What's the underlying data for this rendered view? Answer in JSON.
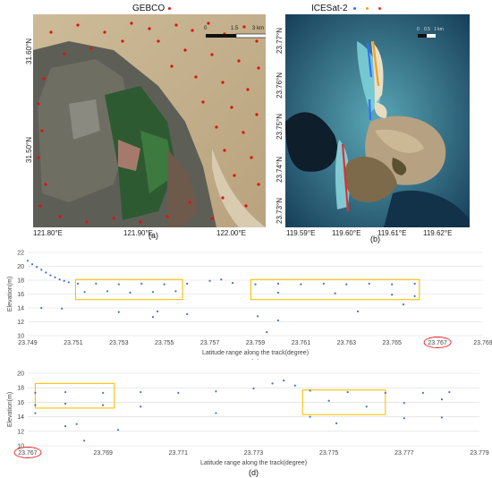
{
  "map_a": {
    "legend": "GEBCO",
    "legend_color": "#e01010",
    "scale_labels": [
      "0",
      "1.5",
      "3 km"
    ],
    "x_ticks": [
      "121.80°E",
      "121.90°E",
      "122.00°E"
    ],
    "y_ticks": [
      "31.60°N",
      "31.50°N"
    ],
    "panel_label": "(a)"
  },
  "map_b": {
    "legend": "ICESat-2",
    "legend_colors": [
      "#2f6fff",
      "#f0a020",
      "#e03030"
    ],
    "scale_labels": [
      "0",
      "0.5",
      "1 km"
    ],
    "x_ticks": [
      "119.59°E",
      "119.60°E",
      "119.61°E",
      "119.62°E"
    ],
    "y_ticks": [
      "23.77°N",
      "23.76°N",
      "23.75°N",
      "23.74°N",
      "23.73°N"
    ],
    "panel_label": "(b)"
  },
  "chart_data": [
    {
      "type": "scatter",
      "panel_label": "(c)",
      "xlabel": "Latitude range along the track(degree)",
      "ylabel": "Elevation(m)",
      "xlim": [
        23.749,
        23.769
      ],
      "ylim": [
        10,
        22
      ],
      "x_ticks": [
        "23.749",
        "23.751",
        "23.753",
        "23.755",
        "23.757",
        "23.759",
        "23.761",
        "23.763",
        "23.765",
        "23.767",
        "23.769"
      ],
      "y_ticks": [
        "10",
        "12",
        "14",
        "16",
        "18",
        "20",
        "22"
      ],
      "highlighted_tick": "23.767",
      "color": "#4472c4",
      "box_color": "#ffc000",
      "boxes": [
        {
          "x": [
            23.7511,
            23.7558
          ],
          "y": [
            15.2,
            18.1
          ]
        },
        {
          "x": [
            23.7588,
            23.7662
          ],
          "y": [
            15.2,
            18.1
          ]
        }
      ],
      "series": [
        {
          "points": [
            [
              23.749,
              20.8
            ],
            [
              23.7492,
              20.3
            ],
            [
              23.7494,
              19.9
            ],
            [
              23.7496,
              19.5
            ],
            [
              23.7498,
              19.1
            ],
            [
              23.75,
              18.7
            ],
            [
              23.7502,
              18.4
            ],
            [
              23.7504,
              18.1
            ],
            [
              23.7506,
              17.9
            ],
            [
              23.7508,
              17.7
            ],
            [
              23.7512,
              17.5
            ],
            [
              23.752,
              17.5
            ],
            [
              23.753,
              17.4
            ],
            [
              23.754,
              17.5
            ],
            [
              23.755,
              17.4
            ],
            [
              23.756,
              17.5
            ],
            [
              23.757,
              17.9
            ],
            [
              23.7575,
              18.1
            ],
            [
              23.758,
              17.6
            ],
            [
              23.759,
              17.4
            ],
            [
              23.76,
              17.5
            ],
            [
              23.761,
              17.4
            ],
            [
              23.762,
              17.5
            ],
            [
              23.763,
              17.4
            ],
            [
              23.764,
              17.5
            ],
            [
              23.765,
              17.4
            ],
            [
              23.766,
              17.5
            ],
            [
              23.7515,
              16.3
            ],
            [
              23.7525,
              16.4
            ],
            [
              23.7535,
              16.2
            ],
            [
              23.7545,
              16.3
            ],
            [
              23.7555,
              16.4
            ],
            [
              23.76,
              16.2
            ],
            [
              23.7625,
              16.1
            ],
            [
              23.765,
              15.9
            ],
            [
              23.766,
              15.7
            ],
            [
              23.7496,
              14.0
            ],
            [
              23.7505,
              13.9
            ],
            [
              23.753,
              13.4
            ],
            [
              23.7545,
              12.7
            ],
            [
              23.7547,
              13.5
            ],
            [
              23.756,
              13.1
            ],
            [
              23.7591,
              12.8
            ],
            [
              23.7595,
              10.5
            ],
            [
              23.76,
              12.2
            ],
            [
              23.7635,
              13.5
            ],
            [
              23.7655,
              14.5
            ]
          ]
        }
      ]
    },
    {
      "type": "scatter",
      "panel_label": "(d)",
      "xlabel": "Latitude range along the track(degree)",
      "ylabel": "Elevation(m)",
      "xlim": [
        23.767,
        23.779
      ],
      "ylim": [
        10,
        20
      ],
      "x_ticks": [
        "23.767",
        "23.769",
        "23.771",
        "23.773",
        "23.775",
        "23.777",
        "23.779"
      ],
      "y_ticks": [
        "10",
        "12",
        "14",
        "16",
        "18",
        "20"
      ],
      "highlighted_tick": "23.767",
      "color": "#4472c4",
      "box_color": "#ffc000",
      "boxes": [
        {
          "x": [
            23.7672,
            23.7693
          ],
          "y": [
            15.2,
            18.6
          ]
        },
        {
          "x": [
            23.7743,
            23.7765
          ],
          "y": [
            14.3,
            17.7
          ]
        }
      ],
      "series": [
        {
          "points": [
            [
              23.7672,
              17.3
            ],
            [
              23.768,
              17.4
            ],
            [
              23.769,
              17.3
            ],
            [
              23.77,
              17.4
            ],
            [
              23.771,
              17.3
            ],
            [
              23.772,
              17.5
            ],
            [
              23.773,
              17.9
            ],
            [
              23.7735,
              18.6
            ],
            [
              23.7738,
              19.0
            ],
            [
              23.7741,
              18.3
            ],
            [
              23.7745,
              17.6
            ],
            [
              23.7755,
              17.4
            ],
            [
              23.7765,
              17.3
            ],
            [
              23.7775,
              17.3
            ],
            [
              23.7782,
              17.4
            ],
            [
              23.7672,
              15.6
            ],
            [
              23.768,
              15.8
            ],
            [
              23.769,
              15.6
            ],
            [
              23.775,
              16.2
            ],
            [
              23.776,
              15.4
            ],
            [
              23.777,
              15.9
            ],
            [
              23.778,
              16.4
            ],
            [
              23.7672,
              14.5
            ],
            [
              23.768,
              12.7
            ],
            [
              23.7683,
              13.0
            ],
            [
              23.7685,
              10.7
            ],
            [
              23.7694,
              12.2
            ],
            [
              23.77,
              15.4
            ],
            [
              23.772,
              14.5
            ],
            [
              23.7745,
              14.0
            ],
            [
              23.7752,
              13.1
            ],
            [
              23.777,
              13.8
            ],
            [
              23.778,
              13.9
            ]
          ]
        }
      ]
    }
  ]
}
